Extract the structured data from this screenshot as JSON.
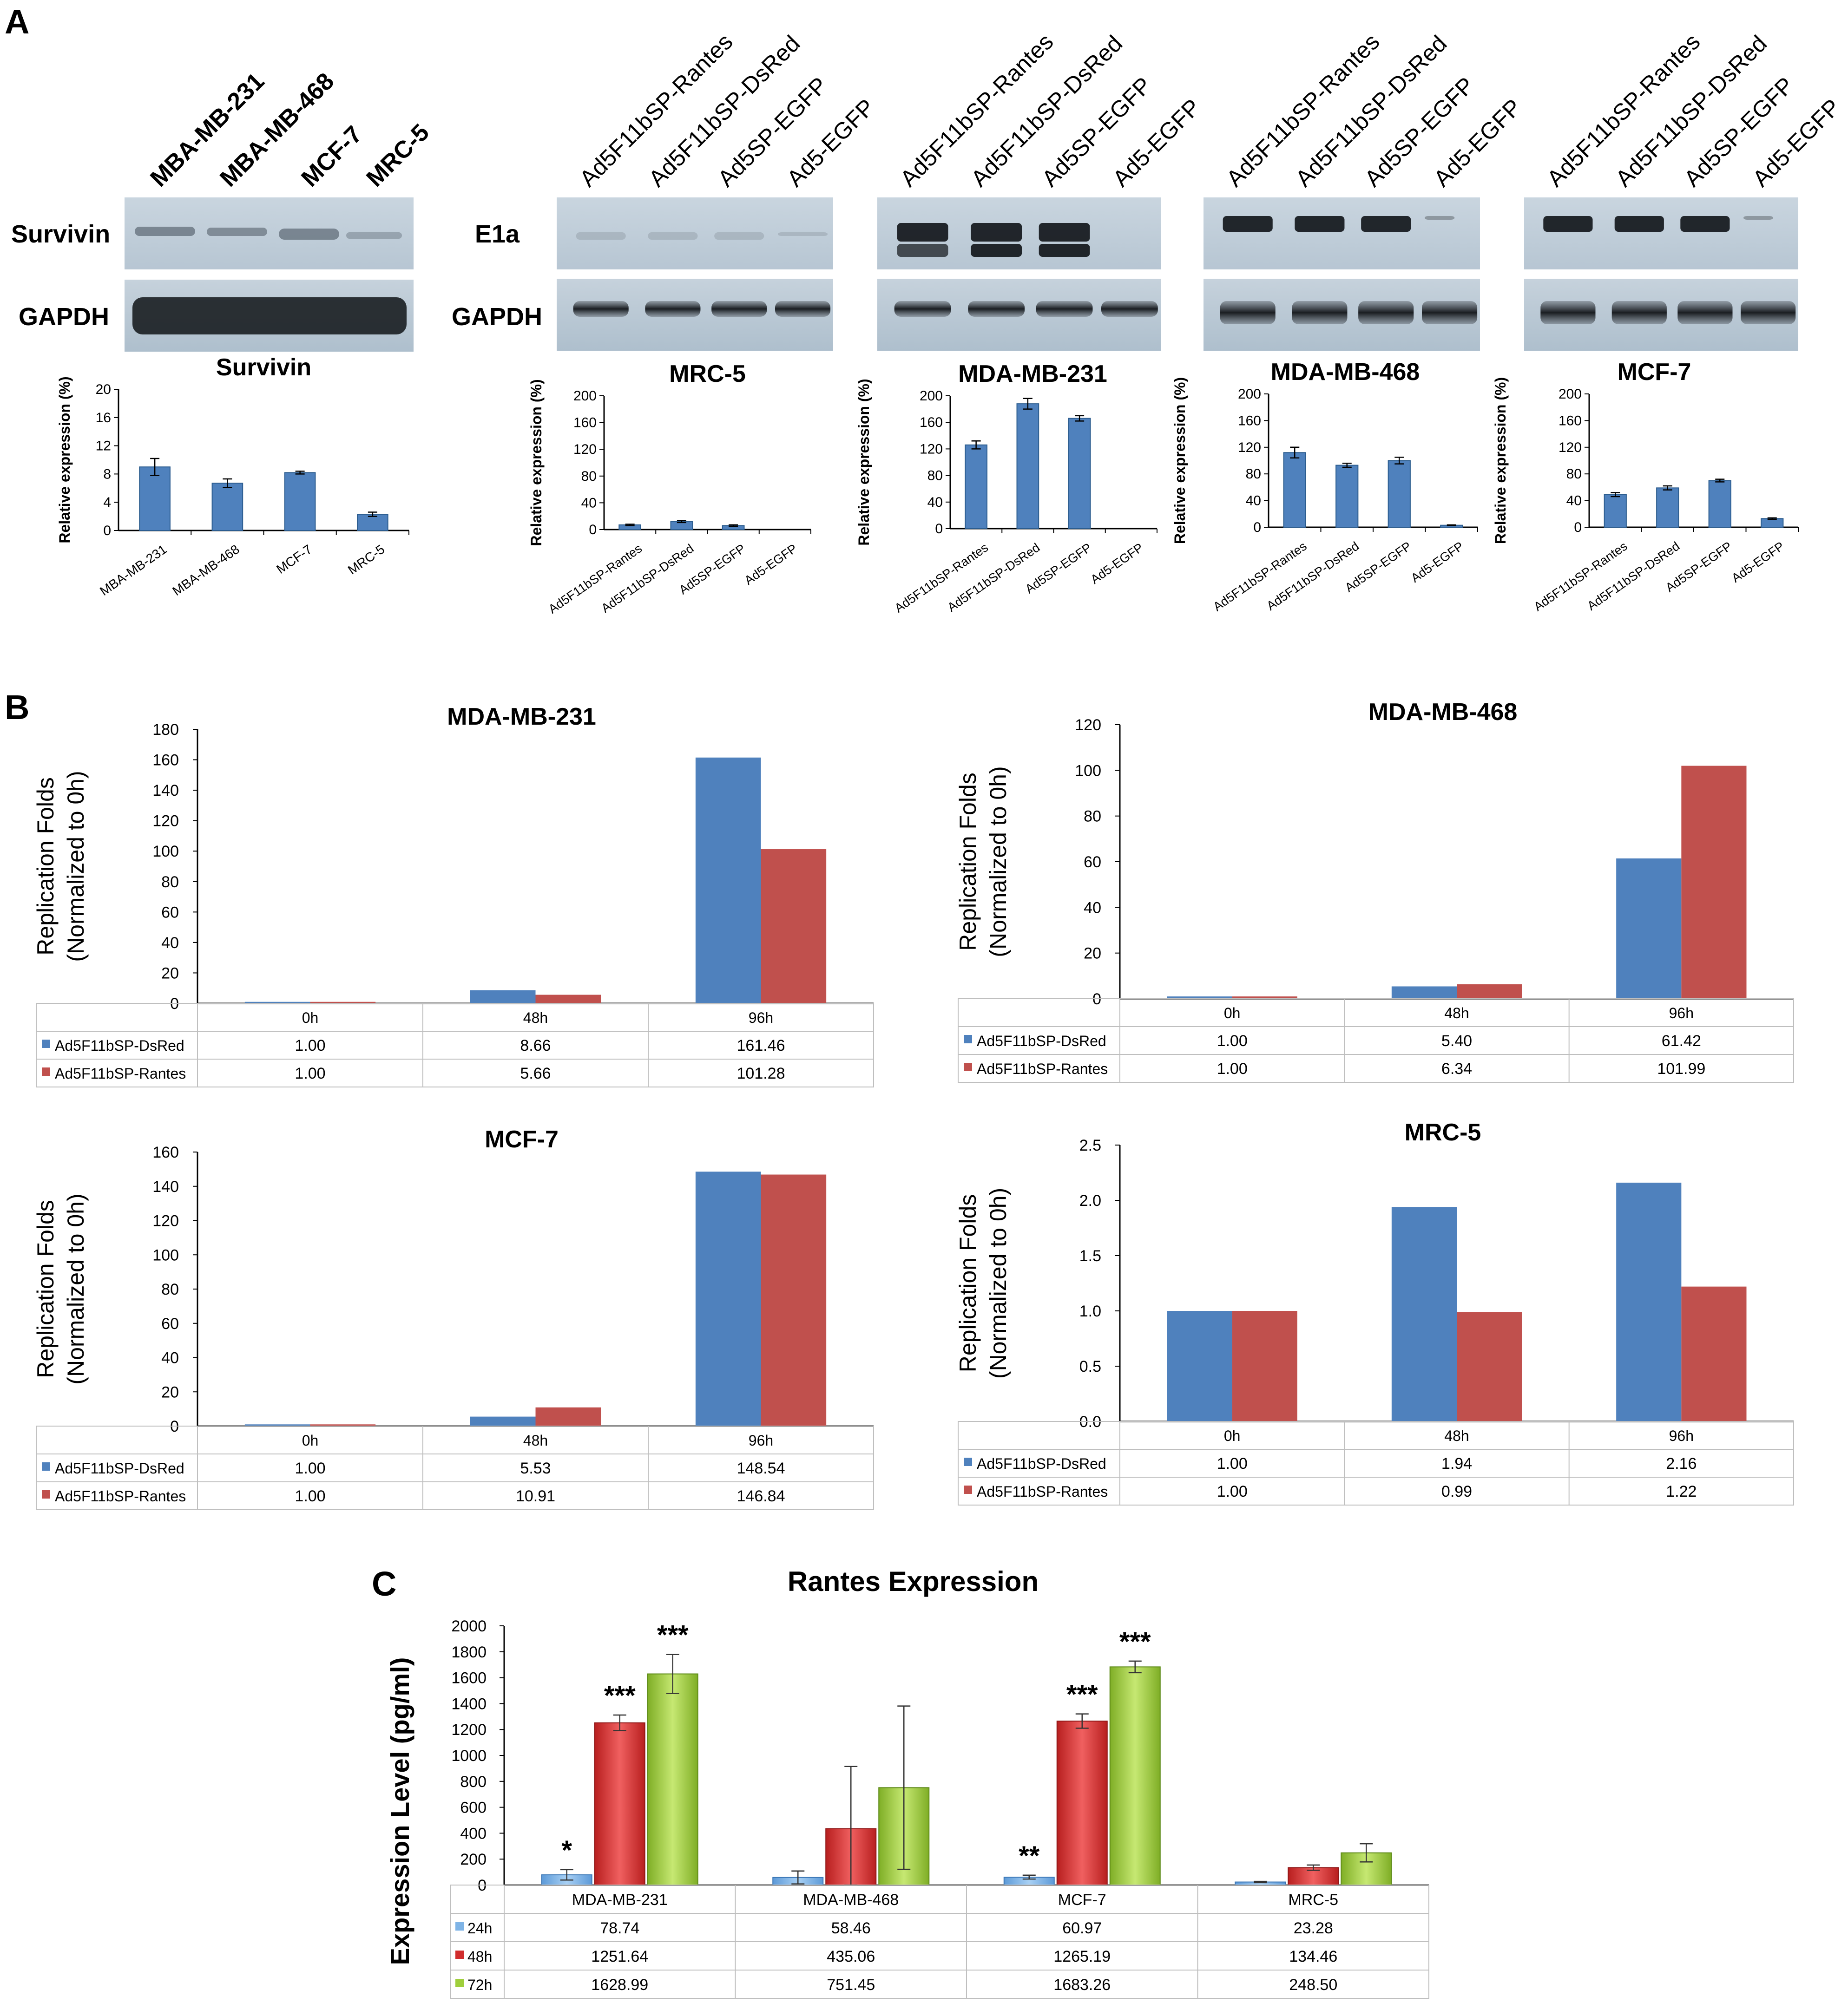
{
  "panels": {
    "a": "A",
    "b": "B",
    "c": "C"
  },
  "blots": {
    "survivin": {
      "lanes": [
        "MBA-MB-231",
        "MBA-MB-468",
        "MCF-7",
        "MRC-5"
      ],
      "row_labels": [
        "Survivin",
        "GAPDH"
      ]
    },
    "e1a": {
      "lanes": [
        "Ad5F11bSP-Rantes",
        "Ad5F11bSP-DsRed",
        "Ad5SP-EGFP",
        "Ad5-EGFP"
      ],
      "row_labels": [
        "E1a",
        "GAPDH"
      ]
    }
  },
  "colors": {
    "blue": "#4f81bd",
    "red": "#c0504d",
    "green": "#9bbb59",
    "lightblue": "#7fb4e6",
    "darkred": "#d12d2d",
    "lime": "#9fcf3c"
  },
  "chart_data": [
    {
      "id": "A1",
      "type": "bar",
      "title": "Survivin",
      "ylabel": "Relative expression (%)",
      "xlabel": "",
      "ylim": [
        0,
        20
      ],
      "yticks": [
        0,
        4,
        8,
        12,
        16,
        20
      ],
      "categories": [
        "MBA-MB-231",
        "MBA-MB-468",
        "MCF-7",
        "MRC-5"
      ],
      "values": [
        9.0,
        6.7,
        8.2,
        2.3
      ],
      "errors": [
        1.2,
        0.6,
        0.2,
        0.3
      ]
    },
    {
      "id": "A2",
      "type": "bar",
      "title": "MRC-5",
      "ylabel": "Relative expression (%)",
      "xlabel": "",
      "ylim": [
        0,
        200
      ],
      "yticks": [
        0,
        40,
        80,
        120,
        160,
        200
      ],
      "categories": [
        "Ad5F11bSP-Rantes",
        "Ad5F11bSP-DsRed",
        "Ad5SP-EGFP",
        "Ad5-EGFP"
      ],
      "values": [
        7,
        12,
        6,
        0
      ],
      "errors": [
        1,
        1.5,
        1,
        0
      ]
    },
    {
      "id": "A3",
      "type": "bar",
      "title": "MDA-MB-231",
      "ylabel": "Relative expression (%)",
      "xlabel": "",
      "ylim": [
        0,
        200
      ],
      "yticks": [
        0,
        40,
        80,
        120,
        160,
        200
      ],
      "categories": [
        "Ad5F11bSP-Rantes",
        "Ad5F11bSP-DsRed",
        "Ad5SP-EGFP",
        "Ad5-EGFP"
      ],
      "values": [
        126,
        188,
        166,
        0
      ],
      "errors": [
        6,
        8,
        4,
        0
      ]
    },
    {
      "id": "A4",
      "type": "bar",
      "title": "MDA-MB-468",
      "ylabel": "Relative expression (%)",
      "xlabel": "",
      "ylim": [
        0,
        200
      ],
      "yticks": [
        0,
        40,
        80,
        120,
        160,
        200
      ],
      "categories": [
        "Ad5F11bSP-Rantes",
        "Ad5F11bSP-DsRed",
        "Ad5SP-EGFP",
        "Ad5-EGFP"
      ],
      "values": [
        112,
        93,
        100,
        3
      ],
      "errors": [
        8,
        3,
        5,
        0.5
      ]
    },
    {
      "id": "A5",
      "type": "bar",
      "title": "MCF-7",
      "ylabel": "Relative expression (%)",
      "xlabel": "",
      "ylim": [
        0,
        200
      ],
      "yticks": [
        0,
        40,
        80,
        120,
        160,
        200
      ],
      "categories": [
        "Ad5F11bSP-Rantes",
        "Ad5F11bSP-DsRed",
        "Ad5SP-EGFP",
        "Ad5-EGFP"
      ],
      "values": [
        49,
        59,
        70,
        13
      ],
      "errors": [
        3,
        3,
        2,
        1
      ]
    },
    {
      "id": "B1",
      "type": "bar",
      "title": "MDA-MB-231",
      "ylabel": [
        "Replication Folds",
        "(Normalized to 0h)"
      ],
      "ylim": [
        0,
        180
      ],
      "yticks": [
        0,
        20,
        40,
        60,
        80,
        100,
        120,
        140,
        160,
        180
      ],
      "categories": [
        "0h",
        "48h",
        "96h"
      ],
      "series": [
        {
          "name": "Ad5F11bSP-DsRed",
          "values": [
            1.0,
            8.66,
            161.46
          ],
          "labels": [
            "1.00",
            "8.66",
            "161.46"
          ]
        },
        {
          "name": "Ad5F11bSP-Rantes",
          "values": [
            1.0,
            5.66,
            101.28
          ],
          "labels": [
            "1.00",
            "5.66",
            "101.28"
          ]
        }
      ]
    },
    {
      "id": "B2",
      "type": "bar",
      "title": "MDA-MB-468",
      "ylabel": [
        "Replication Folds",
        "(Normalized to 0h)"
      ],
      "ylim": [
        0,
        120
      ],
      "yticks": [
        0,
        20,
        40,
        60,
        80,
        100,
        120
      ],
      "categories": [
        "0h",
        "48h",
        "96h"
      ],
      "series": [
        {
          "name": "Ad5F11bSP-DsRed",
          "values": [
            1.0,
            5.4,
            61.42
          ],
          "labels": [
            "1.00",
            "5.40",
            "61.42"
          ]
        },
        {
          "name": "Ad5F11bSP-Rantes",
          "values": [
            1.0,
            6.34,
            101.99
          ],
          "labels": [
            "1.00",
            "6.34",
            "101.99"
          ]
        }
      ]
    },
    {
      "id": "B3",
      "type": "bar",
      "title": "MCF-7",
      "ylabel": [
        "Replication Folds",
        "(Normalized to 0h)"
      ],
      "ylim": [
        0,
        160
      ],
      "yticks": [
        0,
        20,
        40,
        60,
        80,
        100,
        120,
        140,
        160
      ],
      "categories": [
        "0h",
        "48h",
        "96h"
      ],
      "series": [
        {
          "name": "Ad5F11bSP-DsRed",
          "values": [
            1.0,
            5.53,
            148.54
          ],
          "labels": [
            "1.00",
            "5.53",
            "148.54"
          ]
        },
        {
          "name": "Ad5F11bSP-Rantes",
          "values": [
            1.0,
            10.91,
            146.84
          ],
          "labels": [
            "1.00",
            "10.91",
            "146.84"
          ]
        }
      ]
    },
    {
      "id": "B4",
      "type": "bar",
      "title": "MRC-5",
      "ylabel": [
        "Replication Folds",
        "(Normalized to 0h)"
      ],
      "ylim": [
        0,
        2.5
      ],
      "yticks": [
        0,
        0.5,
        1,
        1.5,
        2,
        2.5
      ],
      "yticklabels": [
        "0.0",
        "0.5",
        "1.0",
        "1.5",
        "2.0",
        "2.5"
      ],
      "categories": [
        "0h",
        "48h",
        "96h"
      ],
      "series": [
        {
          "name": "Ad5F11bSP-DsRed",
          "values": [
            1.0,
            1.94,
            2.16
          ],
          "labels": [
            "1.00",
            "1.94",
            "2.16"
          ]
        },
        {
          "name": "Ad5F11bSP-Rantes",
          "values": [
            1.0,
            0.99,
            1.22
          ],
          "labels": [
            "1.00",
            "0.99",
            "1.22"
          ]
        }
      ]
    },
    {
      "id": "C",
      "type": "bar",
      "title": "Rantes  Expression",
      "ylabel": "Expression Level (pg/ml)",
      "ylim": [
        0,
        2000
      ],
      "yticks": [
        0,
        200,
        400,
        600,
        800,
        1000,
        1200,
        1400,
        1600,
        1800,
        2000
      ],
      "categories": [
        "MDA-MB-231",
        "MDA-MB-468",
        "MCF-7",
        "MRC-5"
      ],
      "series": [
        {
          "name": "24h",
          "values": [
            78.74,
            58.46,
            60.97,
            23.28
          ],
          "labels": [
            "78.74",
            "58.46",
            "60.97",
            "23.28"
          ],
          "errors": [
            40,
            50,
            15,
            5
          ]
        },
        {
          "name": "48h",
          "values": [
            1251.64,
            435.06,
            1265.19,
            134.46
          ],
          "labels": [
            "1251.64",
            "435.06",
            "1265.19",
            "134.46"
          ],
          "errors": [
            60,
            480,
            55,
            20
          ]
        },
        {
          "name": "72h",
          "values": [
            1628.99,
            751.45,
            1683.26,
            248.5
          ],
          "labels": [
            "1628.99",
            "751.45",
            "1683.26",
            "248.50"
          ],
          "errors": [
            150,
            630,
            45,
            70
          ]
        }
      ],
      "annotations": [
        {
          "category": 0,
          "series": 0,
          "text": "*"
        },
        {
          "category": 0,
          "series": 1,
          "text": "***"
        },
        {
          "category": 0,
          "series": 2,
          "text": "***"
        },
        {
          "category": 2,
          "series": 0,
          "text": "**"
        },
        {
          "category": 2,
          "series": 1,
          "text": "***"
        },
        {
          "category": 2,
          "series": 2,
          "text": "***"
        }
      ]
    }
  ]
}
